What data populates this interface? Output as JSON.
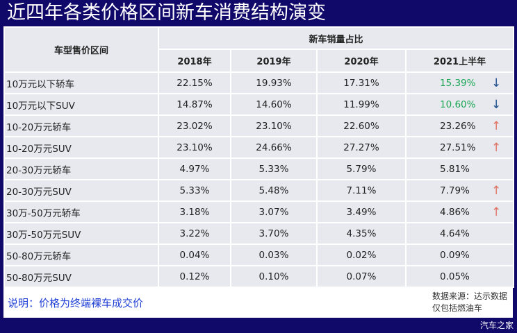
{
  "title": "近四年各类价格区间新车消费结构演变",
  "table": {
    "row_header": "车型售价区间",
    "group_header": "新车销量占比",
    "columns": [
      "2018年",
      "2019年",
      "2020年",
      "2021上半年"
    ],
    "rows": [
      {
        "label": "10万元以下轿车",
        "values": [
          "22.15%",
          "19.93%",
          "17.31%",
          "15.39%"
        ],
        "highlight": true,
        "trend": "down"
      },
      {
        "label": "10万元以下SUV",
        "values": [
          "14.87%",
          "14.60%",
          "11.99%",
          "10.60%"
        ],
        "highlight": true,
        "trend": "down"
      },
      {
        "label": "10-20万元轿车",
        "values": [
          "23.02%",
          "23.10%",
          "22.60%",
          "23.26%"
        ],
        "trend": "up"
      },
      {
        "label": "10-20万元SUV",
        "values": [
          "23.10%",
          "24.66%",
          "27.27%",
          "27.51%"
        ],
        "trend": "up"
      },
      {
        "label": "20-30万元轿车",
        "values": [
          "4.97%",
          "5.33%",
          "5.79%",
          "5.81%"
        ],
        "trend": ""
      },
      {
        "label": "20-30万元SUV",
        "values": [
          "5.33%",
          "5.48%",
          "7.11%",
          "7.79%"
        ],
        "trend": "up"
      },
      {
        "label": "30万-50万元轿车",
        "values": [
          "3.18%",
          "3.07%",
          "3.49%",
          "4.86%"
        ],
        "trend": "up"
      },
      {
        "label": "30万-50万元SUV",
        "values": [
          "3.22%",
          "3.70%",
          "4.35%",
          "4.64%"
        ],
        "trend": ""
      },
      {
        "label": "50-80万元轿车",
        "values": [
          "0.04%",
          "0.03%",
          "0.02%",
          "0.09%"
        ],
        "trend": ""
      },
      {
        "label": "50-80万元SUV",
        "values": [
          "0.12%",
          "0.10%",
          "0.07%",
          "0.05%"
        ],
        "trend": ""
      }
    ]
  },
  "colors": {
    "background": "#10096a",
    "highlight": "#1aa654",
    "arrow_down": "#1d4f8f",
    "arrow_up": "#e07565"
  },
  "note": "说明：价格为终端裸车成交价",
  "source_line1": "数据来源：达示数据",
  "source_line2": "仅包括燃油车",
  "watermark": "汽车之家"
}
